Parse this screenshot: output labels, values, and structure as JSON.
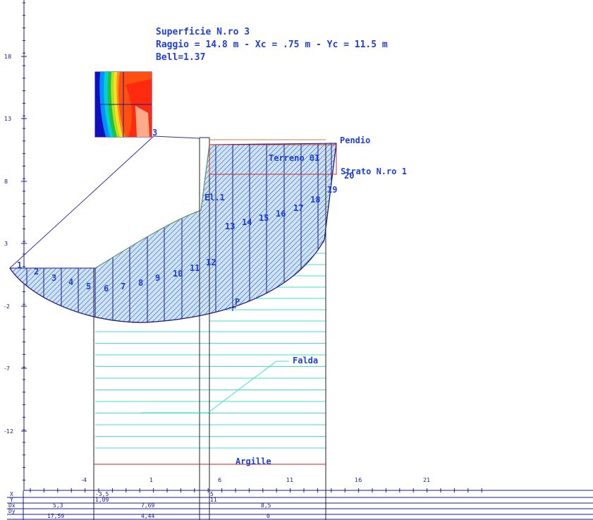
{
  "header": {
    "line1": "Superficie N.ro 3",
    "line2": "Raggio = 14.8 m - Xc = .75 m - Yc = 11.5 m",
    "line3": "Bell=1.37"
  },
  "labels": {
    "pendio": "Pendio",
    "terreno": "Terreno 01",
    "strato": "Strato N.ro 1",
    "el": "El.1",
    "falda": "Falda",
    "argille": "Argille",
    "p": "P",
    "mesh_corner": "3",
    "slice20": "20"
  },
  "slices": [
    "1",
    "2",
    "3",
    "4",
    "5",
    "6",
    "7",
    "8",
    "9",
    "10",
    "11",
    "12",
    "13",
    "14",
    "15",
    "16",
    "17",
    "18",
    "19"
  ],
  "y_ticks": [
    "18",
    "13",
    "8",
    "3",
    "-2",
    "-7",
    "-12"
  ],
  "x_ticks": [
    "-4",
    "1",
    "6",
    "11",
    "16",
    "21"
  ],
  "table": {
    "row_labels": [
      "X",
      "Y",
      "Dx",
      "Dy"
    ],
    "col1": {
      "x": "",
      "y": "",
      "dx": "5,3",
      "dy": "17,59"
    },
    "col2": {
      "x": "-3,5",
      "y": "1,09",
      "dx": "7,69",
      "dy": "4,44"
    },
    "col3": {
      "x": "5",
      "y": "11",
      "dx": "8,5",
      "dy": "0"
    }
  },
  "colors": {
    "blue": "#1f3fd9",
    "navy": "#1a1a8c",
    "water": "#3fe0d0",
    "hatch": "#2a5fb0",
    "red": "#d02020"
  }
}
